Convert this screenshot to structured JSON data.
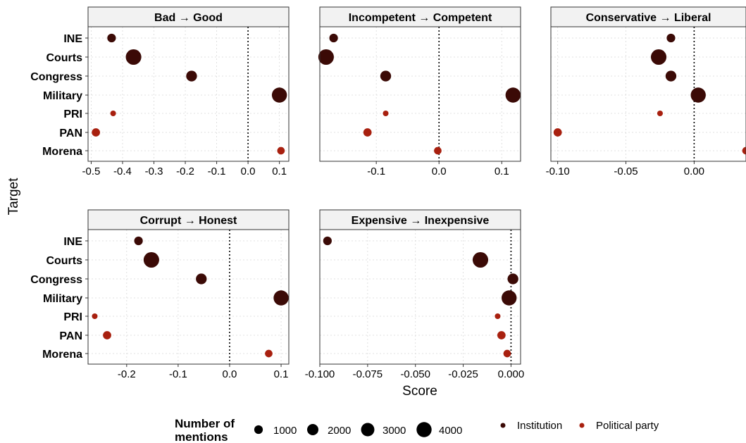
{
  "chart_data": {
    "type": "scatter",
    "y_axis_label": "Target",
    "x_axis_label": "Score",
    "targets": [
      "INE",
      "Courts",
      "Congress",
      "Military",
      "PRI",
      "PAN",
      "Morena"
    ],
    "target_group": {
      "INE": "Institution",
      "Courts": "Institution",
      "Congress": "Institution",
      "Military": "Institution",
      "PRI": "Political party",
      "PAN": "Political party",
      "Morena": "Political party"
    },
    "mentions": {
      "INE": 1000,
      "Courts": 4300,
      "Congress": 1800,
      "Military": 4000,
      "PRI": 300,
      "PAN": 900,
      "Morena": 700
    },
    "colors": {
      "Institution": "#3b0a06",
      "Political party": "#a8200f",
      "strip_bg": "#f2f2f2",
      "grid": "#d9d9d9"
    },
    "panels": [
      {
        "title": "Bad → Good",
        "xlim": [
          -0.51,
          0.13
        ],
        "ticks": [
          -0.5,
          -0.4,
          -0.3,
          -0.2,
          -0.1,
          0.0,
          0.1
        ],
        "tick_labels": [
          "-0.5",
          "-0.4",
          "-0.3",
          "-0.2",
          "-0.1",
          "0.0",
          "0.1"
        ],
        "show_y_labels": true,
        "values": [
          -0.435,
          -0.365,
          -0.18,
          0.1,
          -0.43,
          -0.485,
          0.105
        ]
      },
      {
        "title": "Incompetent → Competent",
        "xlim": [
          -0.19,
          0.13
        ],
        "ticks": [
          -0.1,
          0.0,
          0.1
        ],
        "tick_labels": [
          "-0.1",
          "0.0",
          "0.1"
        ],
        "show_y_labels": false,
        "values": [
          -0.168,
          -0.18,
          -0.085,
          0.118,
          -0.085,
          -0.114,
          -0.002
        ]
      },
      {
        "title": "Conservative → Liberal",
        "xlim": [
          -0.105,
          0.038
        ],
        "ticks": [
          -0.1,
          -0.05,
          0.0
        ],
        "tick_labels": [
          "-0.10",
          "-0.05",
          "0.00"
        ],
        "show_y_labels": false,
        "values": [
          -0.017,
          -0.026,
          -0.017,
          0.003,
          -0.025,
          -0.1,
          0.038
        ]
      },
      {
        "title": "Corrupt → Honest",
        "xlim": [
          -0.275,
          0.115
        ],
        "ticks": [
          -0.2,
          -0.1,
          0.0,
          0.1
        ],
        "tick_labels": [
          "-0.2",
          "-0.1",
          "0.0",
          "0.1"
        ],
        "show_y_labels": true,
        "values": [
          -0.177,
          -0.152,
          -0.055,
          0.1,
          -0.262,
          -0.238,
          0.076
        ]
      },
      {
        "title": "Expensive → Inexpensive",
        "xlim": [
          -0.1,
          0.005
        ],
        "ticks": [
          -0.1,
          -0.075,
          -0.05,
          -0.025,
          0.0
        ],
        "tick_labels": [
          "-0.100",
          "-0.075",
          "-0.050",
          "-0.025",
          "0.000"
        ],
        "show_y_labels": false,
        "values": [
          -0.096,
          -0.016,
          0.001,
          -0.001,
          -0.007,
          -0.005,
          -0.002
        ]
      }
    ],
    "legend_size": {
      "title_line1": "Number of",
      "title_line2": "mentions",
      "breaks": [
        1000,
        2000,
        3000,
        4000
      ],
      "labels": [
        "1000",
        "2000",
        "3000",
        "4000"
      ]
    },
    "legend_color": {
      "entries": [
        "Institution",
        "Political party"
      ]
    }
  }
}
